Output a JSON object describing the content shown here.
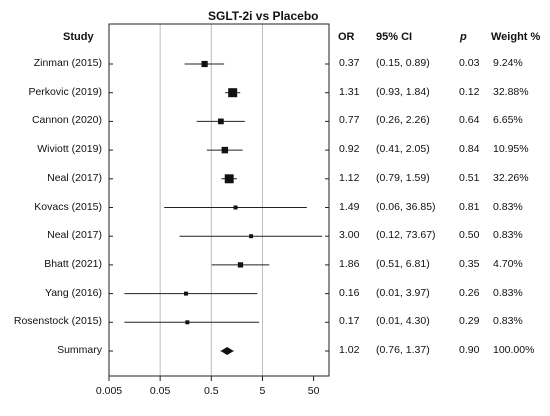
{
  "chart_data": {
    "type": "forest",
    "title": "SGLT-2i vs Placebo",
    "x_scale": "log",
    "xlim": [
      0.005,
      100
    ],
    "x_ticks": [
      0.005,
      0.05,
      0.5,
      5,
      50
    ],
    "x_tick_labels": [
      "0.005",
      "0.05",
      "0.5",
      "5",
      "50"
    ],
    "gridlines": [
      0.05,
      0.5,
      5
    ],
    "columns": {
      "study": "Study",
      "or": "OR",
      "ci": "95% CI",
      "p": "p",
      "weight": "Weight %"
    },
    "rows": [
      {
        "study": "Zinman (2015)",
        "or": 0.37,
        "lo": 0.15,
        "hi": 0.89,
        "or_text": "0.37",
        "ci_text": "(0.15, 0.89)",
        "p_text": "0.03",
        "weight_text": "9.24%",
        "weight": 9.24,
        "summary": false
      },
      {
        "study": "Perkovic (2019)",
        "or": 1.31,
        "lo": 0.93,
        "hi": 1.84,
        "or_text": "1.31",
        "ci_text": "(0.93, 1.84)",
        "p_text": "0.12",
        "weight_text": "32.88%",
        "weight": 32.88,
        "summary": false
      },
      {
        "study": "Cannon (2020)",
        "or": 0.77,
        "lo": 0.26,
        "hi": 2.26,
        "or_text": "0.77",
        "ci_text": "(0.26, 2.26)",
        "p_text": "0.64",
        "weight_text": "6.65%",
        "weight": 6.65,
        "summary": false
      },
      {
        "study": "Wiviott (2019)",
        "or": 0.92,
        "lo": 0.41,
        "hi": 2.05,
        "or_text": "0.92",
        "ci_text": "(0.41, 2.05)",
        "p_text": "0.84",
        "weight_text": "10.95%",
        "weight": 10.95,
        "summary": false
      },
      {
        "study": "Neal (2017)",
        "or": 1.12,
        "lo": 0.79,
        "hi": 1.59,
        "or_text": "1.12",
        "ci_text": "(0.79, 1.59)",
        "p_text": "0.51",
        "weight_text": "32.26%",
        "weight": 32.26,
        "summary": false
      },
      {
        "study": "Kovacs (2015)",
        "or": 1.49,
        "lo": 0.06,
        "hi": 36.85,
        "or_text": "1.49",
        "ci_text": "(0.06, 36.85)",
        "p_text": "0.81",
        "weight_text": "0.83%",
        "weight": 0.83,
        "summary": false
      },
      {
        "study": "Neal  (2017)",
        "or": 3.0,
        "lo": 0.12,
        "hi": 73.67,
        "or_text": "3.00",
        "ci_text": "(0.12, 73.67)",
        "p_text": "0.50",
        "weight_text": "0.83%",
        "weight": 0.83,
        "summary": false
      },
      {
        "study": "Bhatt (2021)",
        "or": 1.86,
        "lo": 0.51,
        "hi": 6.81,
        "or_text": "1.86",
        "ci_text": "(0.51, 6.81)",
        "p_text": "0.35",
        "weight_text": "4.70%",
        "weight": 4.7,
        "summary": false
      },
      {
        "study": "Yang (2016)",
        "or": 0.16,
        "lo": 0.01,
        "hi": 3.97,
        "or_text": "0.16",
        "ci_text": "(0.01, 3.97)",
        "p_text": "0.26",
        "weight_text": "0.83%",
        "weight": 0.83,
        "summary": false
      },
      {
        "study": "Rosenstock (2015)",
        "or": 0.17,
        "lo": 0.01,
        "hi": 4.3,
        "or_text": "0.17",
        "ci_text": "(0.01, 4.30)",
        "p_text": "0.29",
        "weight_text": "0.83%",
        "weight": 0.83,
        "summary": false
      },
      {
        "study": "Summary",
        "or": 1.02,
        "lo": 0.76,
        "hi": 1.37,
        "or_text": "1.02",
        "ci_text": "(0.76, 1.37)",
        "p_text": "0.90",
        "weight_text": "100.00%",
        "weight": 100,
        "summary": true
      }
    ],
    "grid": true,
    "legend": "none"
  }
}
